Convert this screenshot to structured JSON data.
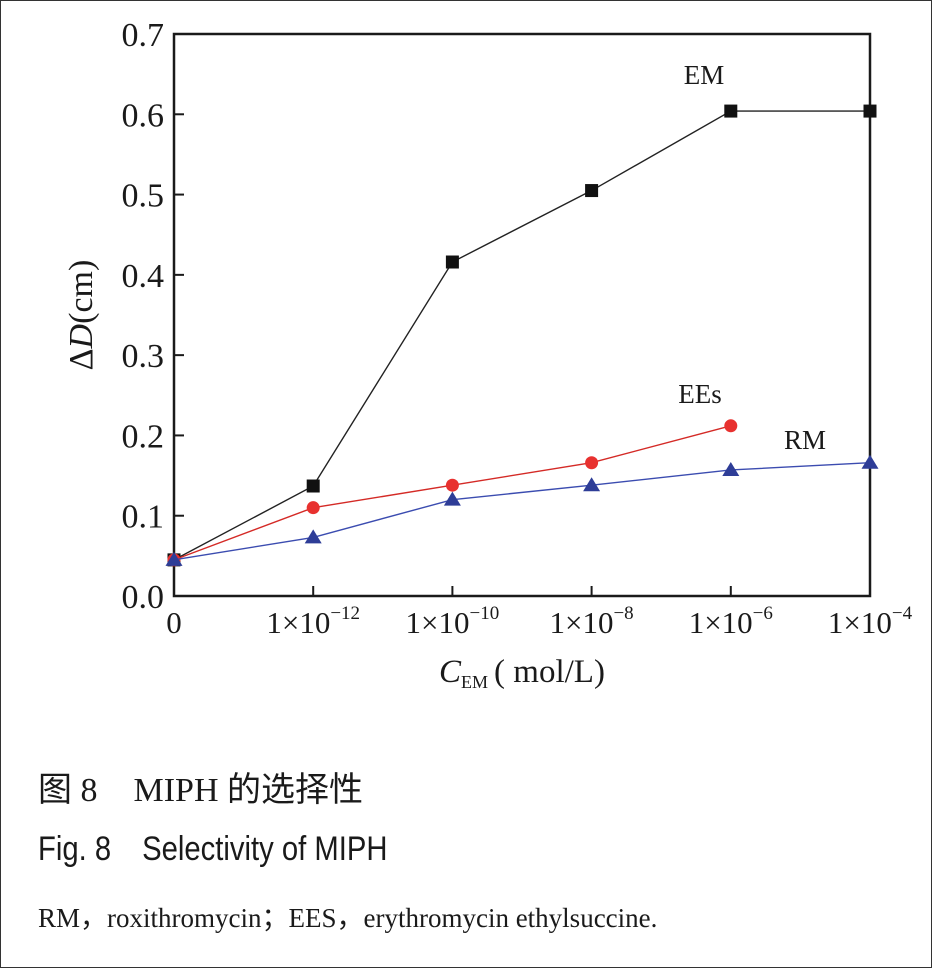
{
  "chart_data": {
    "type": "line",
    "x_categories": [
      "0",
      "1×10",
      "1×10",
      "1×10",
      "1×10",
      "1×10"
    ],
    "x_exponents": [
      "",
      "−12",
      "−10",
      "−8",
      "−6",
      "−4"
    ],
    "xlabel_var": "C",
    "xlabel_sub": "EM",
    "xlabel_unit": "( mol/L)",
    "ylabel": "ΔD(cm)",
    "ylabel_delta": "Δ",
    "ylabel_var": "D",
    "ylabel_unit": "(cm)",
    "ylim": [
      0,
      0.7
    ],
    "yticks": [
      "0.0",
      "0.1",
      "0.2",
      "0.3",
      "0.4",
      "0.5",
      "0.6",
      "0.7"
    ],
    "grid": false,
    "series": [
      {
        "name": "EM",
        "color": "#111111",
        "line_color": "#222222",
        "marker": "square",
        "values": [
          0.045,
          0.137,
          0.416,
          0.505,
          0.604,
          0.604
        ]
      },
      {
        "name": "EEs",
        "color": "#e8312f",
        "line_color": "#d42a26",
        "marker": "circle",
        "values": [
          0.045,
          0.11,
          0.138,
          0.166,
          0.212,
          null
        ]
      },
      {
        "name": "RM",
        "color": "#2e3d97",
        "line_color": "#3b4cb0",
        "marker": "triangle",
        "values": [
          0.045,
          0.073,
          0.12,
          0.138,
          0.157,
          0.166
        ]
      }
    ]
  },
  "caption": {
    "cn_label": "图 8",
    "cn_text": "MIPH 的选择性",
    "en_label": "Fig. 8",
    "en_text": "Selectivity of MIPH",
    "note": "RM，roxithromycin；EES，erythromycin ethylsuccine."
  }
}
